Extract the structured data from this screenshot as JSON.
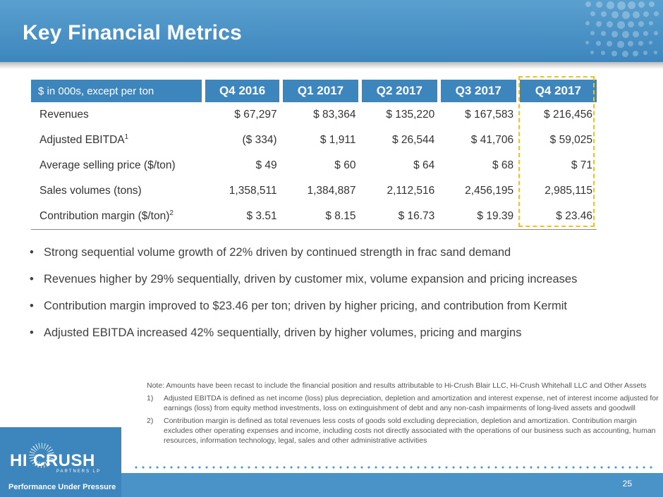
{
  "header": {
    "title": "Key Financial Metrics"
  },
  "table": {
    "label_header": "$ in 000s, except per ton",
    "columns": [
      "Q4 2016",
      "Q1 2017",
      "Q2 2017",
      "Q3 2017",
      "Q4 2017"
    ],
    "rows": [
      {
        "label": "Revenues",
        "sup": "",
        "values": [
          "$ 67,297",
          "$ 83,364",
          "$ 135,220",
          "$ 167,583",
          "$ 216,456"
        ]
      },
      {
        "label": "Adjusted EBITDA",
        "sup": "1",
        "values": [
          "($ 334)",
          "$ 1,911",
          "$ 26,544",
          "$ 41,706",
          "$ 59,025"
        ]
      },
      {
        "label": "Average selling price ($/ton)",
        "sup": "",
        "values": [
          "$ 49",
          "$ 60",
          "$ 64",
          "$ 68",
          "$ 71"
        ]
      },
      {
        "label": "Sales volumes (tons)",
        "sup": "",
        "values": [
          "1,358,511",
          "1,384,887",
          "2,112,516",
          "2,456,195",
          "2,985,115"
        ]
      },
      {
        "label": "Contribution margin ($/ton)",
        "sup": "2",
        "values": [
          "$ 3.51",
          "$ 8.15",
          "$ 16.73",
          "$ 19.39",
          "$ 23.46"
        ]
      }
    ],
    "highlight_color": "#f2c21b",
    "header_color": "#3d86bd"
  },
  "bullets": [
    "Strong sequential volume growth of 22% driven by continued strength in frac sand demand",
    "Revenues higher by 29% sequentially, driven by customer mix, volume expansion and pricing increases",
    "Contribution margin improved to $23.46 per ton; driven by higher pricing, and contribution from Kermit",
    "Adjusted EBITDA increased 42% sequentially, driven by higher volumes, pricing and margins"
  ],
  "notes": {
    "note": "Note: Amounts have been recast to include the financial position and results attributable to Hi-Crush Blair LLC, Hi-Crush Whitehall LLC and Other Assets",
    "footnotes": [
      {
        "num": "1)",
        "text": "Adjusted EBITDA is defined as net income (loss) plus depreciation, depletion and amortization and interest expense, net of interest income adjusted for earnings (loss) from equity method investments, loss on extinguishment of debt and any non-cash impairments of long-lived assets and goodwill"
      },
      {
        "num": "2)",
        "text": "Contribution margin is defined as total revenues less costs of goods sold excluding depreciation, depletion and amortization. Contribution margin excludes other operating expenses and income, including costs not directly associated with the operations of our business such as accounting, human resources, information technology, legal, sales and other administrative activities"
      }
    ]
  },
  "footer": {
    "logo_hi": "HI",
    "logo_crush": "CRUSH",
    "logo_sub": "PARTNERS LP",
    "tagline": "Performance Under Pressure",
    "page_number": "25"
  }
}
